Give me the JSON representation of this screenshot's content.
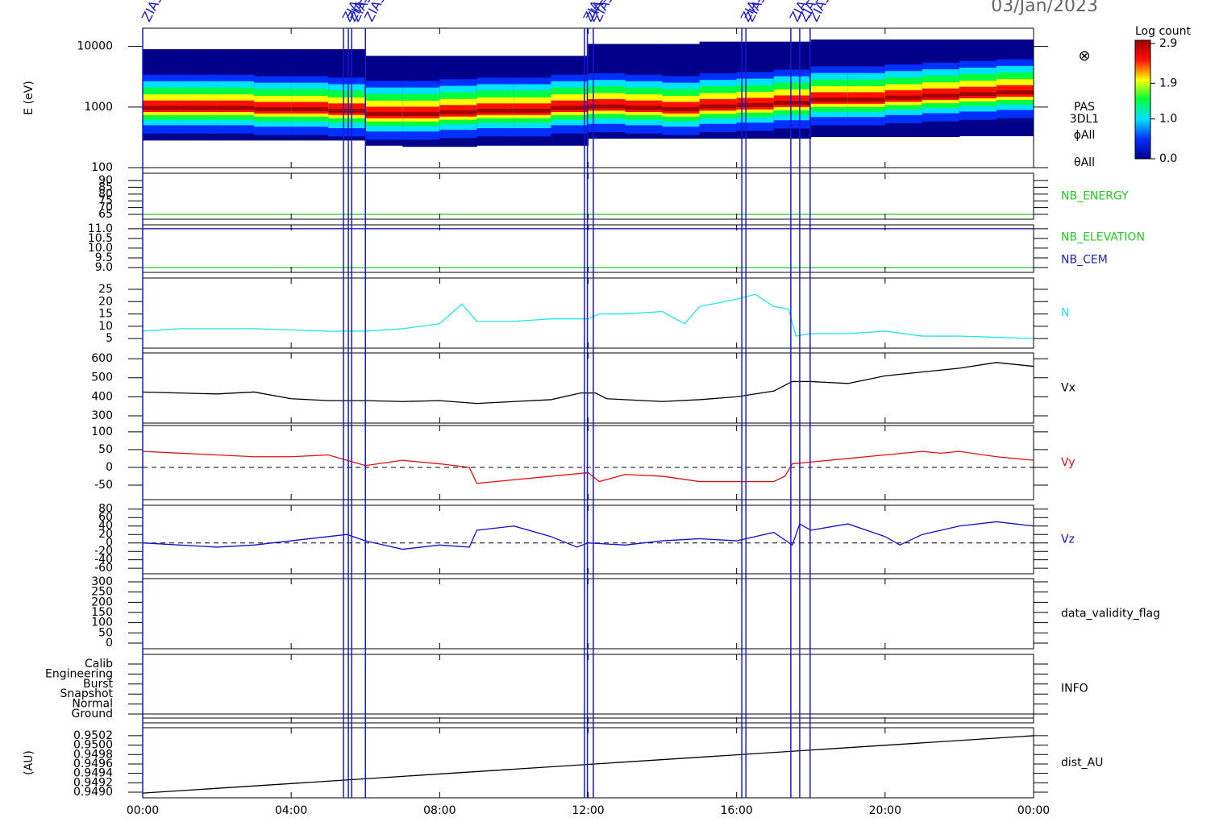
{
  "title": "03/Jan/2023",
  "xlim": [
    0,
    24
  ],
  "xticks": [
    {
      "value": 0,
      "label": "00:00"
    },
    {
      "value": 4,
      "label": "04:00"
    },
    {
      "value": 8,
      "label": "08:00"
    },
    {
      "value": 12,
      "label": "12:00"
    },
    {
      "value": 16,
      "label": "16:00"
    },
    {
      "value": 20,
      "label": "20:00"
    },
    {
      "value": 24,
      "label": "00:00"
    }
  ],
  "events": [
    {
      "x": 0,
      "label": "ZIAS"
    },
    {
      "x": 5.41,
      "label": "ZIAS"
    },
    {
      "x": 5.54,
      "label": "ZIAS"
    },
    {
      "x": 5.63,
      "label": "ZIAS"
    },
    {
      "x": 6.0,
      "label": "ZIAS"
    },
    {
      "x": 11.9,
      "label": "ZIAS"
    },
    {
      "x": 11.98,
      "label": "ZIAS"
    },
    {
      "x": 12.14,
      "label": "ZIAS"
    },
    {
      "x": 16.14,
      "label": "ZIAS"
    },
    {
      "x": 16.25,
      "label": "ZIAS"
    },
    {
      "x": 17.46,
      "label": "ZIAS"
    },
    {
      "x": 17.7,
      "label": "ZIAS"
    },
    {
      "x": 17.98,
      "label": "ZIAS"
    }
  ],
  "chart_data": [
    {
      "type": "spectrogram",
      "ylabel": "E (eV)",
      "log": true,
      "ylim": [
        100,
        20000
      ],
      "yticks": [
        10000,
        1000,
        100
      ],
      "bins": [
        0,
        1,
        2,
        3,
        4,
        5,
        6,
        7,
        8,
        9,
        10,
        11,
        12,
        13,
        14,
        15,
        16,
        17,
        18,
        19,
        20,
        21,
        22,
        23,
        24
      ],
      "peak_energy": [
        950,
        950,
        950,
        900,
        900,
        850,
        750,
        750,
        800,
        850,
        850,
        950,
        1000,
        950,
        900,
        1000,
        1050,
        1150,
        1300,
        1300,
        1400,
        1500,
        1600,
        1700
      ],
      "min_energy": [
        280,
        280,
        280,
        280,
        280,
        280,
        230,
        220,
        220,
        230,
        230,
        230,
        300,
        300,
        300,
        300,
        300,
        300,
        320,
        320,
        320,
        320,
        330,
        330
      ],
      "max_energy": [
        9000,
        9000,
        9000,
        9000,
        9000,
        9000,
        7000,
        7000,
        7000,
        7000,
        7000,
        7000,
        11000,
        11000,
        11000,
        12000,
        12000,
        12000,
        13000,
        13000,
        13000,
        13000,
        13000,
        13000
      ],
      "colorscale": [
        "#00008b",
        "#0030ff",
        "#00e0ff",
        "#00ff40",
        "#ffff00",
        "#ff1000",
        "#a00000"
      ],
      "zlabel": "Log count",
      "zlim": [
        0,
        2.98
      ],
      "zticks": [
        2.9,
        1.9,
        {
          "value": 1,
          "label": "1.0"
        },
        {
          "value": 0,
          "label": "0.0"
        }
      ],
      "labels": [
        "⊗",
        "PAS",
        "3DL1",
        "ϕAll",
        "θAll"
      ]
    },
    {
      "type": "line",
      "ylim": [
        61.4,
        95.4
      ],
      "yticks": [
        90,
        85,
        80,
        75,
        70,
        65
      ],
      "series": [
        {
          "name": "NB_ENERGY",
          "color": "#22cc22",
          "x": [
            0,
            24
          ],
          "values": [
            65,
            65
          ]
        }
      ]
    },
    {
      "type": "line",
      "ylim": [
        8.75,
        11.2
      ],
      "yticks": [
        {
          "value": 11,
          "label": "11.0"
        },
        10.5,
        {
          "value": 10,
          "label": "10.0"
        },
        9.5,
        {
          "value": 9,
          "label": "9.0"
        }
      ],
      "series": [
        {
          "name": "NB_ELEVATION",
          "color": "#22cc22",
          "x": [
            0,
            24
          ],
          "values": [
            9,
            9
          ]
        },
        {
          "name": "NB_CEM",
          "color": "#2222aa",
          "x": [
            0,
            24
          ],
          "values": [
            11,
            11
          ]
        }
      ]
    },
    {
      "type": "line",
      "ylim": [
        1.1,
        29.6
      ],
      "yticks": [
        25,
        20,
        15,
        10,
        5
      ],
      "series": [
        {
          "name": "N",
          "color": "#22e6e6",
          "x": [
            0,
            1,
            2,
            3,
            4,
            5,
            6,
            7,
            8,
            8.6,
            9,
            10,
            11,
            12,
            12.3,
            13,
            14,
            14.6,
            15,
            16,
            16.5,
            17,
            17.4,
            17.6,
            18,
            19,
            20,
            21,
            22,
            23,
            24
          ],
          "values": [
            8,
            9,
            9,
            9,
            8.5,
            8,
            8,
            9,
            11,
            19,
            12,
            12,
            13,
            13,
            15,
            15,
            16,
            11,
            18,
            21,
            23,
            18,
            17,
            6,
            7,
            7,
            8,
            6,
            6,
            5.5,
            5
          ]
        }
      ]
    },
    {
      "type": "line",
      "ylim": [
        262,
        630
      ],
      "yticks": [
        600,
        500,
        400,
        300
      ],
      "series": [
        {
          "name": "Vx",
          "color": "#000000",
          "x": [
            0,
            2,
            3,
            4,
            5,
            6,
            7,
            8,
            9,
            10,
            11,
            11.8,
            12.2,
            12.5,
            14,
            15,
            16,
            17,
            17.5,
            18,
            19,
            19.5,
            20,
            21,
            22,
            23,
            24
          ],
          "values": [
            425,
            415,
            425,
            390,
            380,
            380,
            375,
            380,
            365,
            375,
            385,
            420,
            420,
            390,
            375,
            385,
            400,
            430,
            480,
            480,
            470,
            490,
            510,
            530,
            550,
            580,
            560
          ]
        }
      ]
    },
    {
      "type": "line",
      "ylim": [
        -91,
        118
      ],
      "yticks": [
        100,
        50,
        0,
        -50
      ],
      "zero_line": true,
      "series": [
        {
          "name": "Vy",
          "color": "#e01010",
          "x": [
            0,
            1,
            2,
            3,
            4,
            5,
            5.5,
            6,
            7,
            8,
            8.8,
            9,
            10,
            11,
            12,
            12.3,
            13,
            14,
            15,
            16,
            17,
            17.3,
            17.5,
            18,
            19,
            20,
            21,
            21.5,
            22,
            23,
            24
          ],
          "values": [
            45,
            40,
            35,
            30,
            30,
            35,
            20,
            5,
            20,
            10,
            0,
            -45,
            -35,
            -25,
            -15,
            -40,
            -20,
            -25,
            -40,
            -40,
            -40,
            -25,
            10,
            15,
            25,
            35,
            45,
            40,
            45,
            30,
            20
          ]
        }
      ]
    },
    {
      "type": "line",
      "ylim": [
        -73,
        89
      ],
      "yticks": [
        80,
        60,
        40,
        20,
        0,
        -20,
        -40,
        -60
      ],
      "zero_line": true,
      "series": [
        {
          "name": "Vz",
          "color": "#1010d0",
          "x": [
            0,
            1,
            2,
            3,
            4,
            5,
            5.5,
            6,
            7,
            8,
            8.8,
            9,
            10,
            11,
            11.7,
            12,
            13,
            14,
            15,
            16,
            17,
            17.5,
            17.7,
            18,
            19,
            20,
            20.4,
            21,
            22,
            23,
            24
          ],
          "values": [
            0,
            -5,
            -10,
            -5,
            5,
            15,
            20,
            5,
            -15,
            -5,
            -10,
            30,
            40,
            15,
            -10,
            0,
            -5,
            5,
            10,
            5,
            25,
            -5,
            45,
            30,
            45,
            15,
            -5,
            20,
            40,
            50,
            40
          ]
        }
      ]
    },
    {
      "type": "line",
      "ylim": [
        -27.6,
        315.7
      ],
      "yticks": [
        300,
        250,
        200,
        150,
        100,
        50,
        0
      ],
      "label": "data_validity_flag",
      "series": []
    },
    {
      "type": "category",
      "categories": [
        "Calib",
        "Engineering",
        "Burst",
        "Snapshot",
        "Normal",
        "Ground"
      ],
      "label": "INFO"
    },
    {
      "type": "line",
      "ylabel": "(AU)",
      "ylim": [
        0.94888,
        0.95037
      ],
      "yticks": [
        0.9502,
        {
          "value": 0.95,
          "label": "0.9500"
        },
        0.9498,
        0.9496,
        0.9494,
        0.9492,
        {
          "value": 0.949,
          "label": "0.9490"
        }
      ],
      "series": [
        {
          "name": "dist_AU",
          "color": "#000000",
          "x": [
            0,
            24
          ],
          "values": [
            0.94898,
            0.9502
          ]
        }
      ]
    }
  ]
}
